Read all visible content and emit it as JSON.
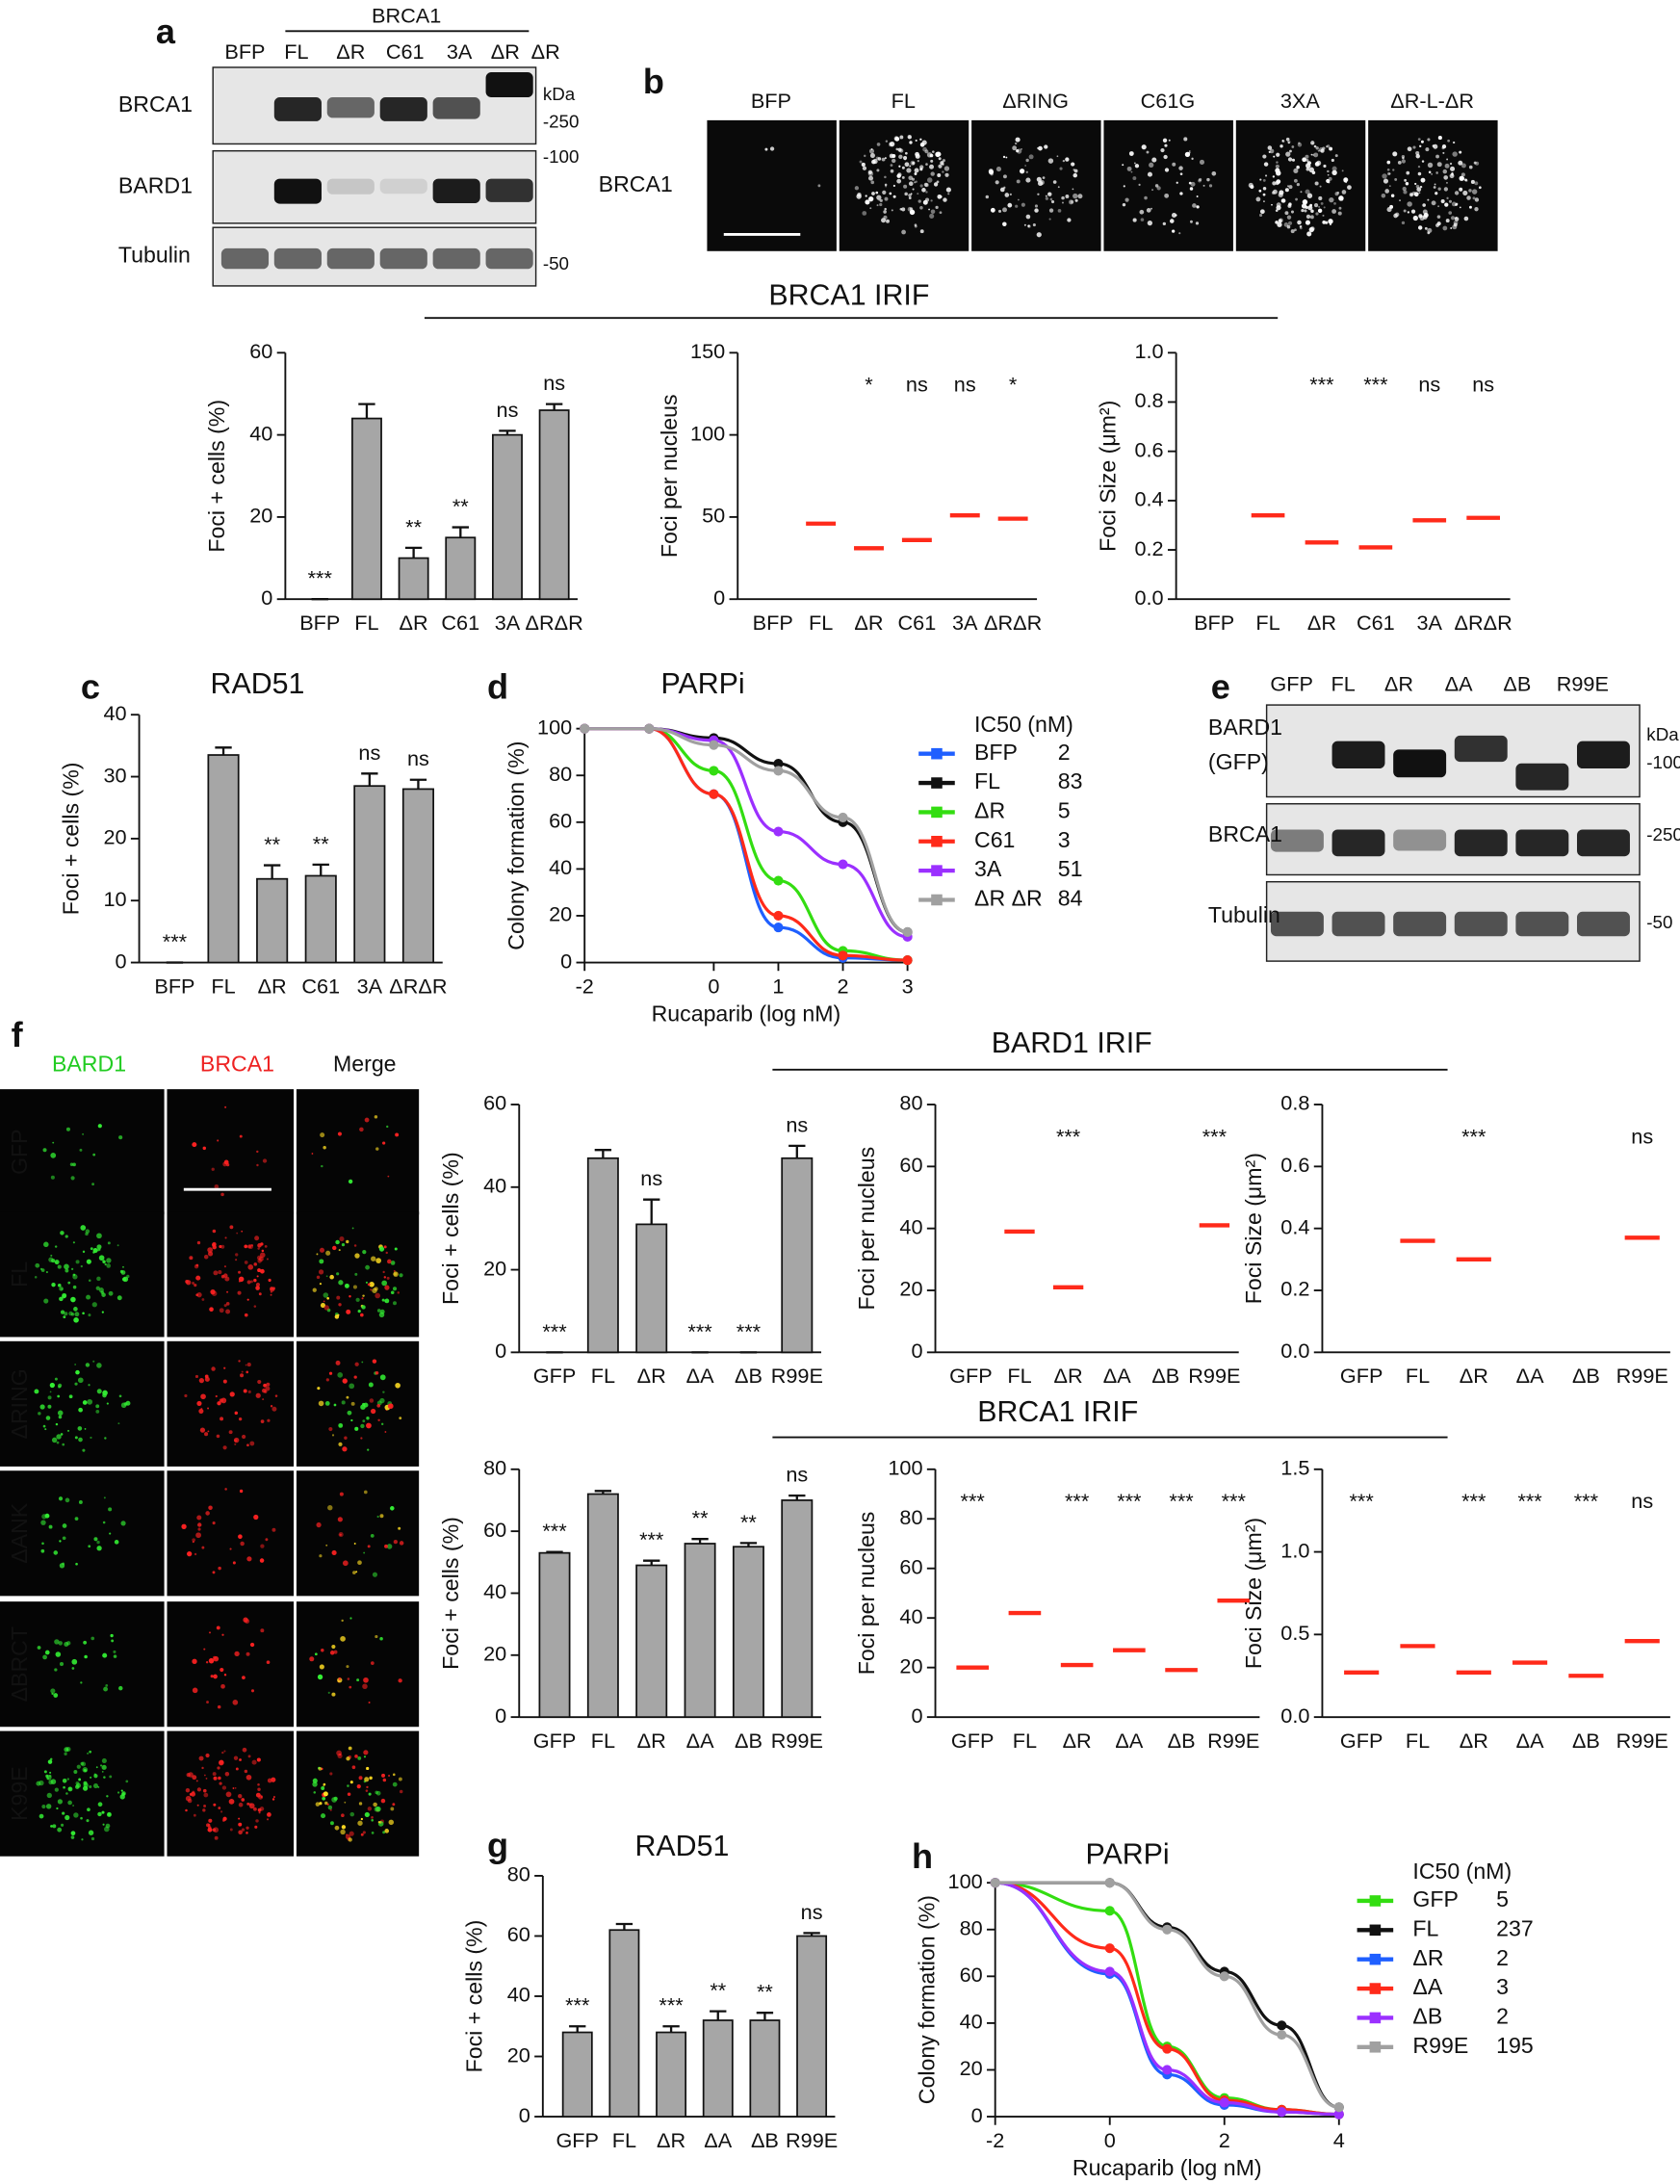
{
  "figure": {
    "panel_labels": [
      "a",
      "b",
      "c",
      "d",
      "e",
      "f",
      "g",
      "h"
    ],
    "blot_a": {
      "header": "BRCA1",
      "lanes": [
        "BFP",
        "FL",
        "ΔR",
        "C61",
        "3A",
        "ΔR",
        "ΔR"
      ],
      "rows": [
        "BRCA1",
        "BARD1",
        "Tubulin"
      ],
      "markers": [
        "kDa",
        "-250",
        "-100",
        "-50"
      ]
    },
    "images_b": {
      "columns": [
        "BFP",
        "FL",
        "ΔRING",
        "C61G",
        "3XA",
        "ΔR-L-ΔR"
      ],
      "row": "BRCA1"
    },
    "headers": [
      "BRCA1 IRIF",
      "BARD1 IRIF",
      "BRCA1 IRIF"
    ],
    "blot_e": {
      "lanes": [
        "GFP",
        "FL",
        "ΔR",
        "ΔA",
        "ΔB",
        "R99E"
      ],
      "rows": [
        "BARD1",
        "BRCA1",
        "Tubulin"
      ],
      "tag": "(GFP)",
      "markers": [
        "kDa",
        "-100",
        "-250",
        "-50"
      ]
    },
    "images_f": {
      "columns": [
        "BARD1",
        "BRCA1",
        "Merge"
      ],
      "rows": [
        "GFP",
        "FL",
        "ΔRING",
        "ΔANK",
        "ΔBRCT",
        "K99E"
      ]
    }
  },
  "chart_data": [
    {
      "type": "bar",
      "ylabel": "Foci + cells (%)",
      "categories": [
        "BFP",
        "FL",
        "ΔR",
        "C61",
        "3A",
        "ΔRΔR"
      ],
      "values": [
        0,
        44,
        10,
        15,
        40,
        46
      ],
      "errors": [
        0,
        3.5,
        2.5,
        2.5,
        1,
        1.5
      ],
      "annotations": [
        "***",
        null,
        "**",
        "**",
        "ns",
        "ns"
      ],
      "color": "#a6a6a6",
      "ylim": [
        0,
        60
      ],
      "yticks": [
        0,
        20,
        40,
        60
      ]
    },
    {
      "type": "strip",
      "ylabel": "Foci per nucleus",
      "categories": [
        "BFP",
        "FL",
        "ΔR",
        "C61",
        "3A",
        "ΔRΔR"
      ],
      "values": [
        null,
        46,
        31,
        36,
        51,
        49
      ],
      "annotations": [
        null,
        null,
        "*",
        "ns",
        "ns",
        "*"
      ],
      "color": "#ff2a1a",
      "ylim": [
        0,
        150
      ],
      "yticks": [
        0,
        50,
        100,
        150
      ]
    },
    {
      "type": "strip",
      "ylabel": "Foci Size (μm²)",
      "categories": [
        "BFP",
        "FL",
        "ΔR",
        "C61",
        "3A",
        "ΔRΔR"
      ],
      "values": [
        null,
        0.34,
        0.23,
        0.21,
        0.32,
        0.33
      ],
      "annotations": [
        null,
        null,
        "***",
        "***",
        "ns",
        "ns"
      ],
      "color": "#ff2a1a",
      "ylim": [
        0,
        1
      ],
      "yticks": [
        {
          "value": 0,
          "label": "0.0"
        },
        0.2,
        0.4,
        0.6,
        0.8,
        {
          "value": 1,
          "label": "1.0"
        }
      ]
    },
    {
      "type": "bar",
      "title": "RAD51",
      "ylabel": "Foci + cells (%)",
      "categories": [
        "BFP",
        "FL",
        "ΔR",
        "C61",
        "3A",
        "ΔRΔR"
      ],
      "values": [
        0,
        33.5,
        13.5,
        14,
        28.5,
        28
      ],
      "errors": [
        0,
        1.2,
        2.2,
        1.8,
        2,
        1.5
      ],
      "annotations": [
        "***",
        null,
        "**",
        "**",
        "ns",
        "ns"
      ],
      "color": "#a6a6a6",
      "ylim": [
        0,
        40
      ],
      "yticks": [
        0,
        10,
        20,
        30,
        40
      ]
    },
    {
      "type": "line",
      "title": "PARPi",
      "ylabel": "Colony formation (%)",
      "xlabel": "Rucaparib (log nM)",
      "legend_title": "IC50 (nM)",
      "x": [
        -2,
        -1,
        0,
        1,
        2,
        3
      ],
      "xlim": [
        -2,
        3
      ],
      "xticks": [
        -2,
        0,
        1,
        2,
        3
      ],
      "ylim": [
        0,
        100
      ],
      "yticks": [
        0,
        20,
        40,
        60,
        80,
        100
      ],
      "series": [
        {
          "name": "BFP",
          "color": "#1f5fff",
          "ic50": 2,
          "values": [
            100,
            100,
            72,
            15,
            2,
            1
          ]
        },
        {
          "name": "FL",
          "color": "#111111",
          "ic50": 83,
          "values": [
            100,
            100,
            96,
            85,
            60,
            13
          ]
        },
        {
          "name": "ΔR",
          "color": "#33dd11",
          "ic50": 5,
          "values": [
            100,
            100,
            82,
            35,
            5,
            1
          ]
        },
        {
          "name": "C61",
          "color": "#ff2a1a",
          "ic50": 3,
          "values": [
            100,
            100,
            72,
            20,
            3,
            1
          ]
        },
        {
          "name": "3A",
          "color": "#9b30ff",
          "ic50": 51,
          "values": [
            100,
            100,
            95,
            56,
            42,
            11
          ]
        },
        {
          "name": "ΔR ΔR",
          "color": "#a0a0a0",
          "ic50": 84,
          "values": [
            100,
            100,
            93,
            82,
            62,
            13
          ]
        }
      ]
    },
    {
      "type": "bar",
      "ylabel": "Foci + cells (%)",
      "categories": [
        "GFP",
        "FL",
        "ΔR",
        "ΔA",
        "ΔB",
        "R99E"
      ],
      "values": [
        0,
        47,
        31,
        0,
        0,
        47
      ],
      "errors": [
        0,
        2,
        6,
        0,
        0,
        3
      ],
      "annotations": [
        "***",
        null,
        "ns",
        "***",
        "***",
        "ns"
      ],
      "color": "#a6a6a6",
      "ylim": [
        0,
        60
      ],
      "yticks": [
        0,
        20,
        40,
        60
      ]
    },
    {
      "type": "strip",
      "ylabel": "Foci per nucleus",
      "categories": [
        "GFP",
        "FL",
        "ΔR",
        "ΔA",
        "ΔB",
        "R99E"
      ],
      "values": [
        null,
        39,
        21,
        null,
        null,
        41
      ],
      "annotations": [
        null,
        null,
        "***",
        null,
        null,
        "***"
      ],
      "color": "#ff2a1a",
      "ylim": [
        0,
        80
      ],
      "yticks": [
        0,
        20,
        40,
        60,
        80
      ]
    },
    {
      "type": "strip",
      "ylabel": "Foci Size (μm²)",
      "categories": [
        "GFP",
        "FL",
        "ΔR",
        "ΔA",
        "ΔB",
        "R99E"
      ],
      "values": [
        null,
        0.36,
        0.3,
        null,
        null,
        0.37
      ],
      "annotations": [
        null,
        null,
        "***",
        null,
        null,
        "ns"
      ],
      "color": "#ff2a1a",
      "ylim": [
        0,
        0.8
      ],
      "yticks": [
        {
          "value": 0,
          "label": "0.0"
        },
        0.2,
        0.4,
        0.6,
        0.8
      ]
    },
    {
      "type": "bar",
      "ylabel": "Foci + cells (%)",
      "categories": [
        "GFP",
        "FL",
        "ΔR",
        "ΔA",
        "ΔB",
        "R99E"
      ],
      "values": [
        53,
        72,
        49,
        56,
        55,
        70
      ],
      "errors": [
        0.3,
        1,
        1.5,
        1.5,
        1.2,
        1.5
      ],
      "annotations": [
        "***",
        null,
        "***",
        "**",
        "**",
        "ns"
      ],
      "color": "#a6a6a6",
      "ylim": [
        0,
        80
      ],
      "yticks": [
        0,
        20,
        40,
        60,
        80
      ]
    },
    {
      "type": "strip",
      "ylabel": "Foci per nucleus",
      "categories": [
        "GFP",
        "FL",
        "ΔR",
        "ΔA",
        "ΔB",
        "R99E"
      ],
      "values": [
        20,
        42,
        21,
        27,
        19,
        47
      ],
      "annotations": [
        "***",
        null,
        "***",
        "***",
        "***",
        "***"
      ],
      "color": "#ff2a1a",
      "ylim": [
        0,
        100
      ],
      "yticks": [
        0,
        20,
        40,
        60,
        80,
        100
      ]
    },
    {
      "type": "strip",
      "ylabel": "Foci Size (μm²)",
      "categories": [
        "GFP",
        "FL",
        "ΔR",
        "ΔA",
        "ΔB",
        "R99E"
      ],
      "values": [
        0.27,
        0.43,
        0.27,
        0.33,
        0.25,
        0.46
      ],
      "annotations": [
        "***",
        null,
        "***",
        "***",
        "***",
        "ns"
      ],
      "color": "#ff2a1a",
      "ylim": [
        0,
        1.5
      ],
      "yticks": [
        {
          "value": 0,
          "label": "0.0"
        },
        0.5,
        {
          "value": 1,
          "label": "1.0"
        },
        1.5
      ]
    },
    {
      "type": "bar",
      "title": "RAD51",
      "ylabel": "Foci + cells (%)",
      "categories": [
        "GFP",
        "FL",
        "ΔR",
        "ΔA",
        "ΔB",
        "R99E"
      ],
      "values": [
        28,
        62,
        28,
        32,
        32,
        60
      ],
      "errors": [
        2,
        2,
        2,
        3,
        2.5,
        1
      ],
      "annotations": [
        "***",
        null,
        "***",
        "**",
        "**",
        "ns"
      ],
      "color": "#a6a6a6",
      "ylim": [
        0,
        80
      ],
      "yticks": [
        0,
        20,
        40,
        60,
        80
      ]
    },
    {
      "type": "line",
      "title": "PARPi",
      "ylabel": "Colony formation (%)",
      "xlabel": "Rucaparib (log nM)",
      "legend_title": "IC50 (nM)",
      "x": [
        -2,
        0,
        1,
        2,
        3,
        4
      ],
      "xlim": [
        -2,
        4
      ],
      "xticks": [
        -2,
        0,
        2,
        4
      ],
      "ylim": [
        0,
        100
      ],
      "yticks": [
        0,
        20,
        40,
        60,
        80,
        100
      ],
      "series": [
        {
          "name": "GFP",
          "color": "#33dd11",
          "ic50": 5,
          "values": [
            100,
            88,
            30,
            8,
            3,
            1
          ]
        },
        {
          "name": "FL",
          "color": "#111111",
          "ic50": 237,
          "values": [
            100,
            100,
            81,
            62,
            39,
            4
          ]
        },
        {
          "name": "ΔR",
          "color": "#1f5fff",
          "ic50": 2,
          "values": [
            100,
            61,
            18,
            5,
            2,
            1
          ]
        },
        {
          "name": "ΔA",
          "color": "#ff2a1a",
          "ic50": 3,
          "values": [
            100,
            72,
            29,
            7,
            3,
            1
          ]
        },
        {
          "name": "ΔB",
          "color": "#9b30ff",
          "ic50": 2,
          "values": [
            100,
            62,
            20,
            6,
            2,
            1
          ]
        },
        {
          "name": "R99E",
          "color": "#a0a0a0",
          "ic50": 195,
          "values": [
            100,
            100,
            80,
            60,
            35,
            4
          ]
        }
      ]
    }
  ]
}
